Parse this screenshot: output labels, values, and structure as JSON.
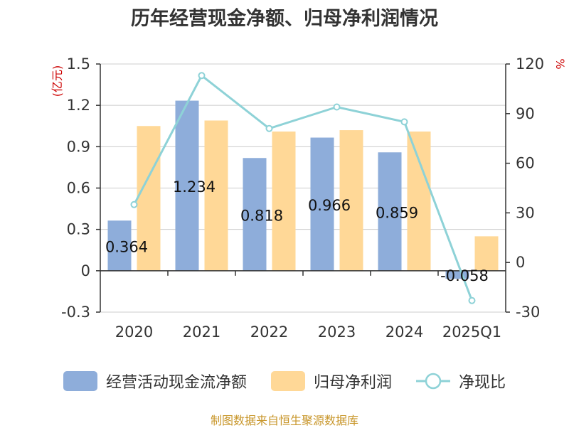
{
  "title": "历年经营现金净额、归母净利润情况",
  "source": "制图数据来自恒生聚源数据库",
  "colors": {
    "cash_flow": "#8eadda",
    "net_profit": "#ffd897",
    "ratio": "#8ed2d7",
    "axis_unit": "#cc0000",
    "grid": "#cccccc"
  },
  "legend": {
    "cash_flow": "经营活动现金流净额",
    "net_profit": "归母净利润",
    "ratio": "净现比"
  },
  "chart_data": {
    "type": "bar",
    "categories": [
      "2020",
      "2021",
      "2022",
      "2023",
      "2024",
      "2025Q1"
    ],
    "left_axis": {
      "unit": "(亿元)",
      "ylim": [
        -0.3,
        1.5
      ],
      "ticks": [
        "1.5",
        "1.2",
        "0.9",
        "0.6",
        "0.3",
        "0",
        "-0.3"
      ]
    },
    "right_axis": {
      "unit": "%",
      "ylim": [
        -30,
        120
      ],
      "ticks": [
        "120",
        "90",
        "60",
        "30",
        "0",
        "-30"
      ]
    },
    "grid": true,
    "series": [
      {
        "name": "经营活动现金流净额",
        "kind": "bar",
        "axis": "left",
        "values": [
          0.364,
          1.234,
          0.818,
          0.966,
          0.859,
          -0.058
        ],
        "labels": [
          "0.364",
          "1.234",
          "0.818",
          "0.966",
          "0.859",
          "-0.058"
        ]
      },
      {
        "name": "归母净利润",
        "kind": "bar",
        "axis": "left",
        "values": [
          1.05,
          1.09,
          1.01,
          1.02,
          1.01,
          0.25
        ]
      },
      {
        "name": "净现比",
        "kind": "line",
        "axis": "right",
        "values": [
          35,
          113,
          81,
          94,
          85,
          -23
        ]
      }
    ]
  }
}
